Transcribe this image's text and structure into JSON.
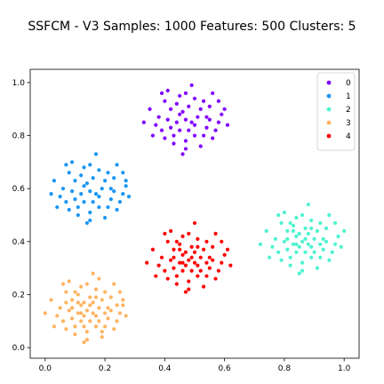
{
  "chart_data": {
    "type": "scatter",
    "title": "SSFCM - V3 Samples: 1000 Features: 500 Clusters: 5",
    "xlabel": "",
    "ylabel": "",
    "xlim": [
      -0.05,
      1.05
    ],
    "ylim": [
      -0.04,
      1.05
    ],
    "x_ticks": [
      "0.0",
      "0.2",
      "0.4",
      "0.6",
      "0.8",
      "1.0"
    ],
    "y_ticks": [
      "0.0",
      "0.2",
      "0.4",
      "0.6",
      "0.8",
      "1.0"
    ],
    "grid": false,
    "legend_position": "upper right",
    "series": [
      {
        "name": "0",
        "color": "#8000ff",
        "center": [
          0.47,
          0.86
        ],
        "spread": [
          0.075,
          0.075
        ],
        "points": [
          [
            0.47,
            0.86
          ],
          [
            0.45,
            0.88
          ],
          [
            0.5,
            0.84
          ],
          [
            0.42,
            0.83
          ],
          [
            0.52,
            0.9
          ],
          [
            0.38,
            0.87
          ],
          [
            0.55,
            0.86
          ],
          [
            0.47,
            0.78
          ],
          [
            0.47,
            0.96
          ],
          [
            0.4,
            0.93
          ],
          [
            0.56,
            0.79
          ],
          [
            0.36,
            0.8
          ],
          [
            0.59,
            0.88
          ],
          [
            0.44,
            0.92
          ],
          [
            0.5,
            0.94
          ],
          [
            0.43,
            0.77
          ],
          [
            0.53,
            0.8
          ],
          [
            0.58,
            0.93
          ],
          [
            0.35,
            0.9
          ],
          [
            0.46,
            0.73
          ],
          [
            0.49,
            0.99
          ],
          [
            0.41,
            0.86
          ],
          [
            0.54,
            0.83
          ],
          [
            0.45,
            0.82
          ],
          [
            0.51,
            0.87
          ],
          [
            0.39,
            0.96
          ],
          [
            0.56,
            0.96
          ],
          [
            0.33,
            0.85
          ],
          [
            0.61,
            0.84
          ],
          [
            0.48,
            0.91
          ],
          [
            0.44,
            0.85
          ],
          [
            0.53,
            0.93
          ],
          [
            0.4,
            0.79
          ],
          [
            0.57,
            0.82
          ],
          [
            0.46,
            0.89
          ],
          [
            0.5,
            0.8
          ],
          [
            0.42,
            0.9
          ],
          [
            0.54,
            0.87
          ],
          [
            0.48,
            0.82
          ],
          [
            0.37,
            0.84
          ],
          [
            0.6,
            0.9
          ],
          [
            0.45,
            0.95
          ],
          [
            0.52,
            0.76
          ],
          [
            0.39,
            0.82
          ],
          [
            0.55,
            0.91
          ],
          [
            0.43,
            0.8
          ],
          [
            0.49,
            0.85
          ],
          [
            0.41,
            0.97
          ],
          [
            0.58,
            0.85
          ],
          [
            0.47,
            0.75
          ]
        ]
      },
      {
        "name": "1",
        "color": "#1996f3",
        "center": [
          0.15,
          0.59
        ],
        "spread": [
          0.075,
          0.075
        ],
        "points": [
          [
            0.15,
            0.59
          ],
          [
            0.13,
            0.61
          ],
          [
            0.18,
            0.57
          ],
          [
            0.1,
            0.56
          ],
          [
            0.2,
            0.63
          ],
          [
            0.06,
            0.6
          ],
          [
            0.23,
            0.59
          ],
          [
            0.15,
            0.51
          ],
          [
            0.15,
            0.69
          ],
          [
            0.08,
            0.66
          ],
          [
            0.24,
            0.52
          ],
          [
            0.04,
            0.53
          ],
          [
            0.27,
            0.61
          ],
          [
            0.12,
            0.65
          ],
          [
            0.18,
            0.67
          ],
          [
            0.11,
            0.5
          ],
          [
            0.21,
            0.53
          ],
          [
            0.26,
            0.66
          ],
          [
            0.03,
            0.63
          ],
          [
            0.14,
            0.47
          ],
          [
            0.17,
            0.73
          ],
          [
            0.09,
            0.59
          ],
          [
            0.22,
            0.56
          ],
          [
            0.13,
            0.55
          ],
          [
            0.19,
            0.6
          ],
          [
            0.07,
            0.69
          ],
          [
            0.24,
            0.69
          ],
          [
            0.02,
            0.58
          ],
          [
            0.28,
            0.57
          ],
          [
            0.16,
            0.64
          ],
          [
            0.12,
            0.58
          ],
          [
            0.21,
            0.66
          ],
          [
            0.08,
            0.52
          ],
          [
            0.25,
            0.55
          ],
          [
            0.14,
            0.62
          ],
          [
            0.18,
            0.53
          ],
          [
            0.1,
            0.63
          ],
          [
            0.22,
            0.6
          ],
          [
            0.16,
            0.55
          ],
          [
            0.05,
            0.57
          ],
          [
            0.27,
            0.63
          ],
          [
            0.13,
            0.68
          ],
          [
            0.2,
            0.49
          ],
          [
            0.07,
            0.55
          ],
          [
            0.23,
            0.64
          ],
          [
            0.11,
            0.53
          ],
          [
            0.17,
            0.58
          ],
          [
            0.09,
            0.7
          ],
          [
            0.26,
            0.58
          ],
          [
            0.15,
            0.48
          ]
        ]
      },
      {
        "name": "2",
        "color": "#4df3ce",
        "center": [
          0.86,
          0.4
        ],
        "spread": [
          0.075,
          0.075
        ],
        "points": [
          [
            0.86,
            0.4
          ],
          [
            0.84,
            0.42
          ],
          [
            0.89,
            0.38
          ],
          [
            0.81,
            0.37
          ],
          [
            0.91,
            0.44
          ],
          [
            0.77,
            0.41
          ],
          [
            0.94,
            0.4
          ],
          [
            0.86,
            0.32
          ],
          [
            0.86,
            0.5
          ],
          [
            0.79,
            0.47
          ],
          [
            0.95,
            0.33
          ],
          [
            0.75,
            0.34
          ],
          [
            0.98,
            0.42
          ],
          [
            0.83,
            0.46
          ],
          [
            0.89,
            0.48
          ],
          [
            0.82,
            0.31
          ],
          [
            0.92,
            0.34
          ],
          [
            0.97,
            0.47
          ],
          [
            0.74,
            0.44
          ],
          [
            0.85,
            0.28
          ],
          [
            0.88,
            0.54
          ],
          [
            0.8,
            0.4
          ],
          [
            0.93,
            0.37
          ],
          [
            0.84,
            0.36
          ],
          [
            0.9,
            0.41
          ],
          [
            0.78,
            0.5
          ],
          [
            0.95,
            0.5
          ],
          [
            0.72,
            0.39
          ],
          [
            0.99,
            0.38
          ],
          [
            0.87,
            0.45
          ],
          [
            0.83,
            0.39
          ],
          [
            0.92,
            0.47
          ],
          [
            0.79,
            0.33
          ],
          [
            0.96,
            0.36
          ],
          [
            0.85,
            0.43
          ],
          [
            0.89,
            0.34
          ],
          [
            0.81,
            0.44
          ],
          [
            0.93,
            0.41
          ],
          [
            0.87,
            0.36
          ],
          [
            0.76,
            0.38
          ],
          [
            1.0,
            0.44
          ],
          [
            0.84,
            0.49
          ],
          [
            0.91,
            0.3
          ],
          [
            0.78,
            0.36
          ],
          [
            0.94,
            0.45
          ],
          [
            0.82,
            0.34
          ],
          [
            0.88,
            0.39
          ],
          [
            0.8,
            0.51
          ],
          [
            0.97,
            0.39
          ],
          [
            0.86,
            0.29
          ],
          [
            0.83,
            0.44
          ],
          [
            0.9,
            0.36
          ],
          [
            0.85,
            0.38
          ],
          [
            0.88,
            0.43
          ],
          [
            0.81,
            0.41
          ],
          [
            0.92,
            0.39
          ],
          [
            0.87,
            0.41
          ],
          [
            0.84,
            0.39
          ],
          [
            0.89,
            0.45
          ],
          [
            0.82,
            0.47
          ]
        ]
      },
      {
        "name": "3",
        "color": "#ffb360",
        "center": [
          0.14,
          0.14
        ],
        "spread": [
          0.075,
          0.075
        ],
        "points": [
          [
            0.14,
            0.14
          ],
          [
            0.12,
            0.16
          ],
          [
            0.17,
            0.12
          ],
          [
            0.09,
            0.11
          ],
          [
            0.19,
            0.18
          ],
          [
            0.05,
            0.15
          ],
          [
            0.22,
            0.14
          ],
          [
            0.14,
            0.06
          ],
          [
            0.14,
            0.24
          ],
          [
            0.07,
            0.21
          ],
          [
            0.23,
            0.07
          ],
          [
            0.03,
            0.08
          ],
          [
            0.26,
            0.16
          ],
          [
            0.11,
            0.2
          ],
          [
            0.17,
            0.22
          ],
          [
            0.1,
            0.05
          ],
          [
            0.2,
            0.08
          ],
          [
            0.25,
            0.21
          ],
          [
            0.02,
            0.18
          ],
          [
            0.13,
            0.02
          ],
          [
            0.16,
            0.28
          ],
          [
            0.08,
            0.14
          ],
          [
            0.21,
            0.11
          ],
          [
            0.12,
            0.1
          ],
          [
            0.18,
            0.15
          ],
          [
            0.06,
            0.24
          ],
          [
            0.23,
            0.24
          ],
          [
            0.0,
            0.13
          ],
          [
            0.27,
            0.12
          ],
          [
            0.15,
            0.19
          ],
          [
            0.11,
            0.13
          ],
          [
            0.2,
            0.21
          ],
          [
            0.07,
            0.07
          ],
          [
            0.24,
            0.1
          ],
          [
            0.13,
            0.17
          ],
          [
            0.17,
            0.08
          ],
          [
            0.09,
            0.18
          ],
          [
            0.21,
            0.15
          ],
          [
            0.15,
            0.1
          ],
          [
            0.04,
            0.12
          ],
          [
            0.26,
            0.18
          ],
          [
            0.12,
            0.23
          ],
          [
            0.19,
            0.04
          ],
          [
            0.06,
            0.1
          ],
          [
            0.22,
            0.19
          ],
          [
            0.1,
            0.08
          ],
          [
            0.16,
            0.13
          ],
          [
            0.08,
            0.25
          ],
          [
            0.25,
            0.13
          ],
          [
            0.14,
            0.03
          ],
          [
            0.11,
            0.17
          ],
          [
            0.18,
            0.1
          ],
          [
            0.13,
            0.12
          ],
          [
            0.16,
            0.17
          ],
          [
            0.09,
            0.15
          ],
          [
            0.2,
            0.13
          ],
          [
            0.15,
            0.16
          ],
          [
            0.12,
            0.13
          ],
          [
            0.17,
            0.19
          ],
          [
            0.1,
            0.21
          ],
          [
            0.19,
            0.06
          ],
          [
            0.07,
            0.17
          ],
          [
            0.24,
            0.16
          ],
          [
            0.13,
            0.08
          ],
          [
            0.18,
            0.26
          ]
        ]
      },
      {
        "name": "4",
        "color": "#ff0000",
        "center": [
          0.48,
          0.33
        ],
        "spread": [
          0.075,
          0.075
        ],
        "points": [
          [
            0.48,
            0.33
          ],
          [
            0.46,
            0.35
          ],
          [
            0.51,
            0.31
          ],
          [
            0.43,
            0.3
          ],
          [
            0.53,
            0.37
          ],
          [
            0.39,
            0.34
          ],
          [
            0.56,
            0.33
          ],
          [
            0.48,
            0.25
          ],
          [
            0.48,
            0.43
          ],
          [
            0.41,
            0.4
          ],
          [
            0.57,
            0.26
          ],
          [
            0.37,
            0.27
          ],
          [
            0.6,
            0.35
          ],
          [
            0.45,
            0.39
          ],
          [
            0.51,
            0.41
          ],
          [
            0.44,
            0.24
          ],
          [
            0.54,
            0.27
          ],
          [
            0.59,
            0.4
          ],
          [
            0.36,
            0.37
          ],
          [
            0.47,
            0.21
          ],
          [
            0.5,
            0.47
          ],
          [
            0.42,
            0.33
          ],
          [
            0.55,
            0.3
          ],
          [
            0.46,
            0.29
          ],
          [
            0.52,
            0.34
          ],
          [
            0.4,
            0.43
          ],
          [
            0.57,
            0.43
          ],
          [
            0.34,
            0.32
          ],
          [
            0.62,
            0.31
          ],
          [
            0.49,
            0.38
          ],
          [
            0.45,
            0.32
          ],
          [
            0.54,
            0.4
          ],
          [
            0.41,
            0.26
          ],
          [
            0.58,
            0.29
          ],
          [
            0.47,
            0.36
          ],
          [
            0.51,
            0.27
          ],
          [
            0.43,
            0.37
          ],
          [
            0.55,
            0.34
          ],
          [
            0.49,
            0.29
          ],
          [
            0.38,
            0.31
          ],
          [
            0.61,
            0.37
          ],
          [
            0.46,
            0.42
          ],
          [
            0.53,
            0.23
          ],
          [
            0.4,
            0.29
          ],
          [
            0.56,
            0.38
          ],
          [
            0.44,
            0.27
          ],
          [
            0.5,
            0.32
          ],
          [
            0.42,
            0.44
          ],
          [
            0.59,
            0.32
          ],
          [
            0.48,
            0.22
          ],
          [
            0.45,
            0.37
          ],
          [
            0.52,
            0.29
          ],
          [
            0.47,
            0.31
          ],
          [
            0.5,
            0.36
          ],
          [
            0.43,
            0.34
          ],
          [
            0.54,
            0.32
          ],
          [
            0.49,
            0.34
          ],
          [
            0.46,
            0.32
          ],
          [
            0.51,
            0.38
          ],
          [
            0.44,
            0.4
          ]
        ]
      }
    ]
  }
}
